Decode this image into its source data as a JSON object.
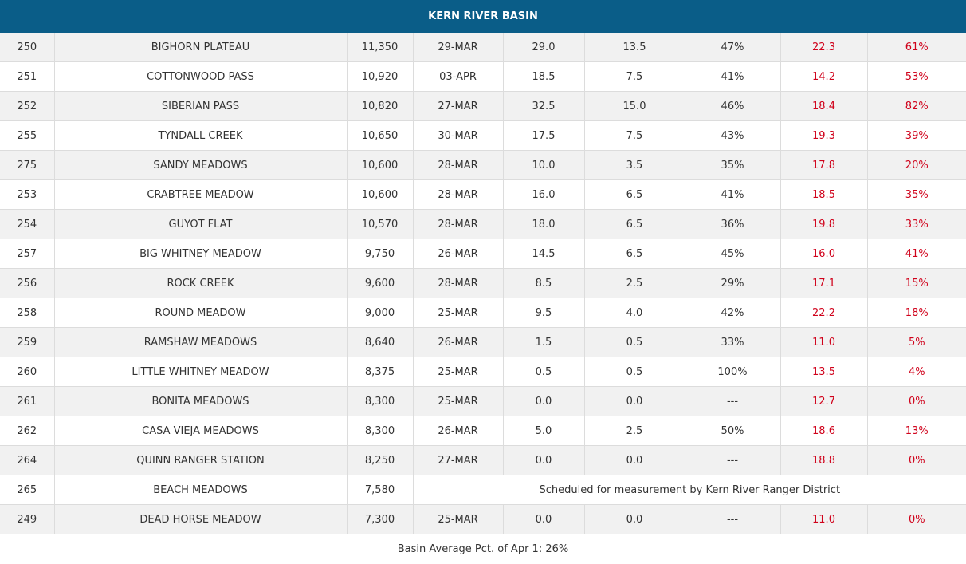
{
  "title": "KERN RIVER BASIN",
  "colors": {
    "header_bg": "#0a5d88",
    "accent_red": "#d0021b"
  },
  "rows": [
    {
      "id": "250",
      "name": "BIGHORN PLATEAU",
      "elev": "11,350",
      "date": "29-MAR",
      "depth": "29.0",
      "wc": "13.5",
      "density": "47%",
      "apr1": "22.3",
      "pct": "61%"
    },
    {
      "id": "251",
      "name": "COTTONWOOD PASS",
      "elev": "10,920",
      "date": "03-APR",
      "depth": "18.5",
      "wc": "7.5",
      "density": "41%",
      "apr1": "14.2",
      "pct": "53%"
    },
    {
      "id": "252",
      "name": "SIBERIAN PASS",
      "elev": "10,820",
      "date": "27-MAR",
      "depth": "32.5",
      "wc": "15.0",
      "density": "46%",
      "apr1": "18.4",
      "pct": "82%"
    },
    {
      "id": "255",
      "name": "TYNDALL CREEK",
      "elev": "10,650",
      "date": "30-MAR",
      "depth": "17.5",
      "wc": "7.5",
      "density": "43%",
      "apr1": "19.3",
      "pct": "39%"
    },
    {
      "id": "275",
      "name": "SANDY MEADOWS",
      "elev": "10,600",
      "date": "28-MAR",
      "depth": "10.0",
      "wc": "3.5",
      "density": "35%",
      "apr1": "17.8",
      "pct": "20%"
    },
    {
      "id": "253",
      "name": "CRABTREE MEADOW",
      "elev": "10,600",
      "date": "28-MAR",
      "depth": "16.0",
      "wc": "6.5",
      "density": "41%",
      "apr1": "18.5",
      "pct": "35%"
    },
    {
      "id": "254",
      "name": "GUYOT FLAT",
      "elev": "10,570",
      "date": "28-MAR",
      "depth": "18.0",
      "wc": "6.5",
      "density": "36%",
      "apr1": "19.8",
      "pct": "33%"
    },
    {
      "id": "257",
      "name": "BIG WHITNEY MEADOW",
      "elev": "9,750",
      "date": "26-MAR",
      "depth": "14.5",
      "wc": "6.5",
      "density": "45%",
      "apr1": "16.0",
      "pct": "41%"
    },
    {
      "id": "256",
      "name": "ROCK CREEK",
      "elev": "9,600",
      "date": "28-MAR",
      "depth": "8.5",
      "wc": "2.5",
      "density": "29%",
      "apr1": "17.1",
      "pct": "15%"
    },
    {
      "id": "258",
      "name": "ROUND MEADOW",
      "elev": "9,000",
      "date": "25-MAR",
      "depth": "9.5",
      "wc": "4.0",
      "density": "42%",
      "apr1": "22.2",
      "pct": "18%"
    },
    {
      "id": "259",
      "name": "RAMSHAW MEADOWS",
      "elev": "8,640",
      "date": "26-MAR",
      "depth": "1.5",
      "wc": "0.5",
      "density": "33%",
      "apr1": "11.0",
      "pct": "5%"
    },
    {
      "id": "260",
      "name": "LITTLE WHITNEY MEADOW",
      "elev": "8,375",
      "date": "25-MAR",
      "depth": "0.5",
      "wc": "0.5",
      "density": "100%",
      "apr1": "13.5",
      "pct": "4%"
    },
    {
      "id": "261",
      "name": "BONITA MEADOWS",
      "elev": "8,300",
      "date": "25-MAR",
      "depth": "0.0",
      "wc": "0.0",
      "density": "---",
      "apr1": "12.7",
      "pct": "0%"
    },
    {
      "id": "262",
      "name": "CASA VIEJA MEADOWS",
      "elev": "8,300",
      "date": "26-MAR",
      "depth": "5.0",
      "wc": "2.5",
      "density": "50%",
      "apr1": "18.6",
      "pct": "13%"
    },
    {
      "id": "264",
      "name": "QUINN RANGER STATION",
      "elev": "8,250",
      "date": "27-MAR",
      "depth": "0.0",
      "wc": "0.0",
      "density": "---",
      "apr1": "18.8",
      "pct": "0%"
    },
    {
      "id": "265",
      "name": "BEACH MEADOWS",
      "elev": "7,580",
      "note": "Scheduled for measurement by Kern River Ranger District"
    },
    {
      "id": "249",
      "name": "DEAD HORSE MEADOW",
      "elev": "7,300",
      "date": "25-MAR",
      "depth": "0.0",
      "wc": "0.0",
      "density": "---",
      "apr1": "11.0",
      "pct": "0%"
    }
  ],
  "footer": "Basin Average Pct. of Apr 1: 26%"
}
